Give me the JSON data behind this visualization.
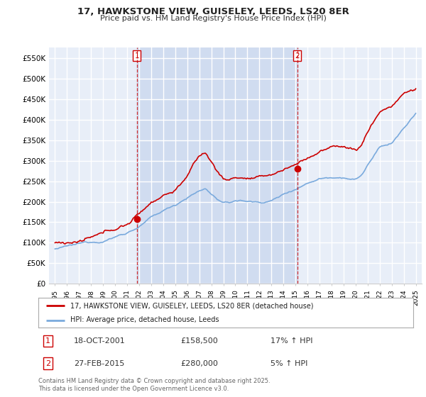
{
  "title": "17, HAWKSTONE VIEW, GUISELEY, LEEDS, LS20 8ER",
  "subtitle": "Price paid vs. HM Land Registry's House Price Index (HPI)",
  "legend_label_red": "17, HAWKSTONE VIEW, GUISELEY, LEEDS, LS20 8ER (detached house)",
  "legend_label_blue": "HPI: Average price, detached house, Leeds",
  "sale1_date": "18-OCT-2001",
  "sale1_price": 158500,
  "sale1_hpi_pct": "17% ↑ HPI",
  "sale2_date": "27-FEB-2015",
  "sale2_price": 280000,
  "sale2_hpi_pct": "5% ↑ HPI",
  "sale1_x": 2001.8,
  "sale2_x": 2015.15,
  "footer": "Contains HM Land Registry data © Crown copyright and database right 2025.\nThis data is licensed under the Open Government Licence v3.0.",
  "ylim": [
    0,
    575000
  ],
  "xlim": [
    1994.5,
    2025.5
  ],
  "yticks": [
    0,
    50000,
    100000,
    150000,
    200000,
    250000,
    300000,
    350000,
    400000,
    450000,
    500000,
    550000
  ],
  "ytick_labels": [
    "£0",
    "£50K",
    "£100K",
    "£150K",
    "£200K",
    "£250K",
    "£300K",
    "£350K",
    "£400K",
    "£450K",
    "£500K",
    "£550K"
  ],
  "xticks": [
    1995,
    1996,
    1997,
    1998,
    1999,
    2000,
    2001,
    2002,
    2003,
    2004,
    2005,
    2006,
    2007,
    2008,
    2009,
    2010,
    2011,
    2012,
    2013,
    2014,
    2015,
    2016,
    2017,
    2018,
    2019,
    2020,
    2021,
    2022,
    2023,
    2024,
    2025
  ],
  "background_color": "#e8eef8",
  "shade_color": "#d0dcf0",
  "grid_color": "#ffffff",
  "red_color": "#cc0000",
  "blue_color": "#7aaadd"
}
